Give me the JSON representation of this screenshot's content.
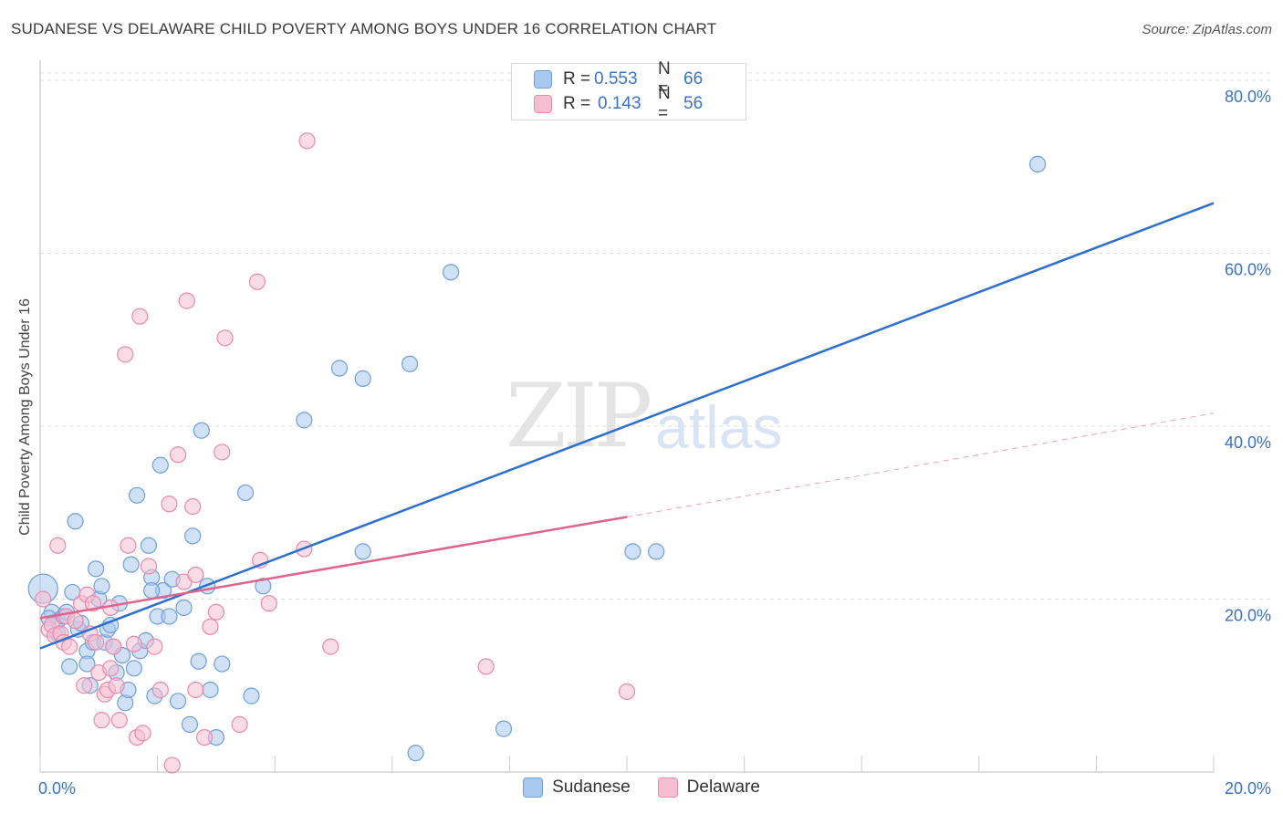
{
  "title": "SUDANESE VS DELAWARE CHILD POVERTY AMONG BOYS UNDER 16 CORRELATION CHART",
  "source": "Source: ZipAtlas.com",
  "watermark": {
    "zip": "ZIP",
    "atlas": "atlas"
  },
  "legend_top": [
    {
      "r_label": "R =",
      "r_value": "0.553",
      "n_label": "N =",
      "n_value": "66"
    },
    {
      "r_label": "R =",
      "r_value": "0.143",
      "n_label": "N =",
      "n_value": "56"
    }
  ],
  "colors": {
    "sudanese_fill": "#a9c8ef",
    "sudanese_stroke": "#6f9fd8",
    "sudanese_line": "#2f6fcc",
    "delaware_fill": "#f6bfd1",
    "delaware_stroke": "#e98aab",
    "delaware_line": "#e0628e",
    "tick_label": "#3a73c9",
    "grid": "#dcdcdc"
  },
  "chart_data": {
    "type": "scatter",
    "title": "SUDANESE VS DELAWARE CHILD POVERTY AMONG BOYS UNDER 16 CORRELATION CHART",
    "xlabel": "",
    "ylabel": "Child Poverty Among Boys Under 16",
    "xlim": [
      0,
      20
    ],
    "ylim": [
      0,
      80
    ],
    "x_tick_labels": [
      {
        "value": 0,
        "label": "0.0%"
      },
      {
        "value": 20,
        "label": "20.0%"
      }
    ],
    "y_tick_labels": [
      {
        "value": 20,
        "label": "20.0%"
      },
      {
        "value": 40,
        "label": "40.0%"
      },
      {
        "value": 60,
        "label": "60.0%"
      },
      {
        "value": 80,
        "label": "80.0%"
      }
    ],
    "grid": true,
    "legend": "bottom",
    "series": [
      {
        "name": "Sudanese",
        "color": "#a9c8ef",
        "trend": {
          "x": [
            0,
            20
          ],
          "y": [
            14.3,
            65.8
          ]
        },
        "points": [
          [
            0.05,
            21.2
          ],
          [
            0.2,
            18.5
          ],
          [
            0.3,
            16.0
          ],
          [
            0.3,
            17.5
          ],
          [
            0.4,
            18.0
          ],
          [
            0.45,
            18.5
          ],
          [
            0.5,
            12.2
          ],
          [
            0.55,
            20.8
          ],
          [
            0.6,
            29.0
          ],
          [
            0.65,
            16.5
          ],
          [
            0.7,
            17.2
          ],
          [
            0.8,
            14.0
          ],
          [
            0.8,
            12.5
          ],
          [
            0.85,
            10.0
          ],
          [
            0.9,
            15.0
          ],
          [
            0.95,
            23.5
          ],
          [
            1.0,
            20.0
          ],
          [
            1.05,
            21.5
          ],
          [
            1.1,
            15.0
          ],
          [
            1.15,
            16.5
          ],
          [
            1.2,
            17.0
          ],
          [
            1.25,
            14.5
          ],
          [
            1.3,
            11.5
          ],
          [
            1.35,
            19.5
          ],
          [
            1.4,
            13.5
          ],
          [
            1.45,
            8.0
          ],
          [
            1.5,
            9.5
          ],
          [
            1.55,
            24.0
          ],
          [
            1.6,
            12.0
          ],
          [
            1.65,
            32.0
          ],
          [
            1.7,
            14.0
          ],
          [
            1.8,
            15.2
          ],
          [
            1.85,
            26.2
          ],
          [
            1.9,
            22.5
          ],
          [
            1.95,
            8.8
          ],
          [
            2.0,
            18.0
          ],
          [
            2.05,
            35.5
          ],
          [
            2.1,
            21.0
          ],
          [
            2.2,
            18.0
          ],
          [
            2.25,
            22.3
          ],
          [
            2.35,
            8.2
          ],
          [
            2.45,
            19.0
          ],
          [
            2.55,
            5.5
          ],
          [
            2.6,
            27.3
          ],
          [
            2.7,
            12.8
          ],
          [
            2.75,
            39.5
          ],
          [
            2.85,
            21.5
          ],
          [
            2.9,
            9.5
          ],
          [
            3.0,
            4.0
          ],
          [
            3.1,
            12.5
          ],
          [
            3.5,
            32.3
          ],
          [
            3.6,
            8.8
          ],
          [
            3.8,
            21.5
          ],
          [
            4.5,
            40.7
          ],
          [
            5.1,
            46.7
          ],
          [
            5.5,
            25.5
          ],
          [
            5.5,
            45.5
          ],
          [
            6.3,
            47.2
          ],
          [
            6.4,
            2.2
          ],
          [
            7.0,
            57.8
          ],
          [
            7.9,
            5.0
          ],
          [
            10.1,
            25.5
          ],
          [
            10.5,
            25.5
          ],
          [
            17.0,
            70.3
          ],
          [
            0.15,
            17.8
          ],
          [
            1.9,
            21.0
          ]
        ]
      },
      {
        "name": "Delaware",
        "color": "#f6bfd1",
        "trend": {
          "x": [
            0,
            10
          ],
          "y": [
            17.8,
            29.5
          ]
        },
        "trend_extension": {
          "x": [
            10,
            20
          ],
          "y": [
            29.5,
            41.5
          ]
        },
        "points": [
          [
            0.05,
            20.0
          ],
          [
            0.15,
            16.5
          ],
          [
            0.2,
            17.0
          ],
          [
            0.25,
            15.8
          ],
          [
            0.3,
            26.2
          ],
          [
            0.35,
            16.0
          ],
          [
            0.4,
            15.0
          ],
          [
            0.45,
            18.0
          ],
          [
            0.5,
            14.5
          ],
          [
            0.6,
            17.5
          ],
          [
            0.7,
            19.5
          ],
          [
            0.75,
            10.0
          ],
          [
            0.8,
            20.5
          ],
          [
            0.85,
            16.0
          ],
          [
            0.9,
            19.5
          ],
          [
            0.95,
            15.0
          ],
          [
            1.0,
            11.5
          ],
          [
            1.05,
            6.0
          ],
          [
            1.1,
            9.0
          ],
          [
            1.15,
            9.5
          ],
          [
            1.2,
            12.0
          ],
          [
            1.25,
            14.5
          ],
          [
            1.3,
            10.0
          ],
          [
            1.35,
            6.0
          ],
          [
            1.45,
            48.3
          ],
          [
            1.5,
            26.2
          ],
          [
            1.6,
            14.8
          ],
          [
            1.65,
            4.0
          ],
          [
            1.7,
            52.7
          ],
          [
            1.75,
            4.5
          ],
          [
            1.85,
            23.8
          ],
          [
            1.95,
            14.5
          ],
          [
            2.05,
            9.5
          ],
          [
            2.2,
            31.0
          ],
          [
            2.25,
            0.8
          ],
          [
            2.35,
            36.7
          ],
          [
            2.45,
            22.0
          ],
          [
            2.5,
            54.5
          ],
          [
            2.6,
            30.7
          ],
          [
            2.65,
            9.5
          ],
          [
            2.8,
            4.0
          ],
          [
            2.9,
            16.8
          ],
          [
            3.0,
            18.5
          ],
          [
            3.15,
            50.2
          ],
          [
            3.4,
            5.5
          ],
          [
            3.1,
            37.0
          ],
          [
            3.7,
            56.7
          ],
          [
            3.75,
            24.5
          ],
          [
            3.9,
            19.5
          ],
          [
            4.5,
            25.8
          ],
          [
            4.55,
            73.0
          ],
          [
            4.95,
            14.5
          ],
          [
            7.6,
            12.2
          ],
          [
            10.0,
            9.3
          ],
          [
            1.2,
            19.0
          ],
          [
            2.65,
            22.8
          ]
        ]
      }
    ]
  },
  "legend_bottom": [
    {
      "label": "Sudanese"
    },
    {
      "label": "Delaware"
    }
  ]
}
